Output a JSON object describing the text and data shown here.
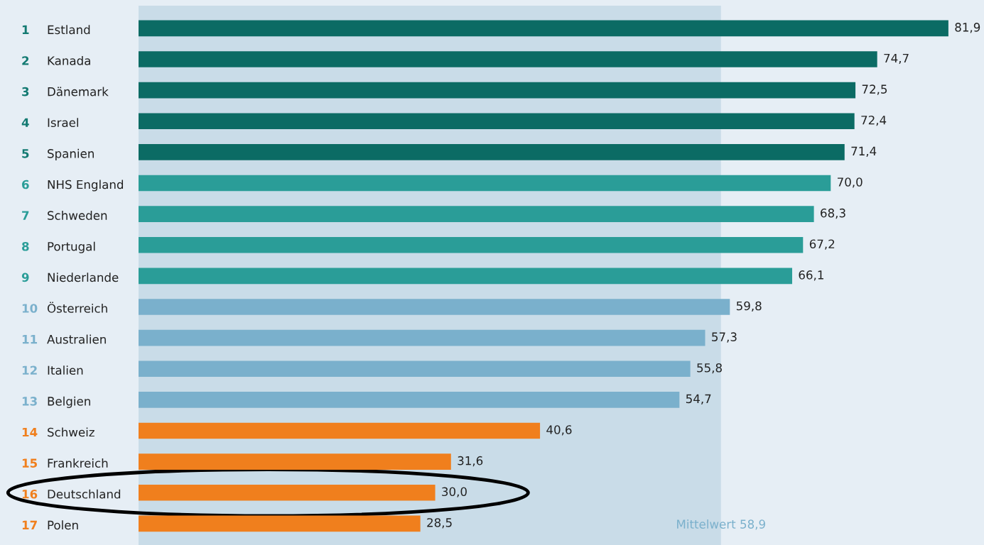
{
  "chart_data": {
    "type": "bar",
    "orientation": "horizontal",
    "categories": [
      "1 Estland",
      "2 Kanada",
      "3 Dänemark",
      "4 Israel",
      "5 Spanien",
      "6 NHS England",
      "7 Schweden",
      "8 Portugal",
      "9 Niederlande",
      "10 Österreich",
      "11 Australien",
      "12 Italien",
      "13 Belgien",
      "14 Schweiz",
      "15 Frankreich",
      "16 Deutschland",
      "17 Polen"
    ],
    "values": [
      81.9,
      74.7,
      72.5,
      72.4,
      71.4,
      70.0,
      68.3,
      67.2,
      66.1,
      59.8,
      57.3,
      55.8,
      54.7,
      40.6,
      31.6,
      30.0,
      28.5
    ],
    "value_labels": [
      "81,9",
      "74,7",
      "72,5",
      "72,4",
      "71,4",
      "70,0",
      "68,3",
      "67,2",
      "66,1",
      "59,8",
      "57,3",
      "55,8",
      "54,7",
      "40,6",
      "31,6",
      "30,0",
      "28,5"
    ],
    "colors": [
      "#0b6b64",
      "#0b6b64",
      "#0b6b64",
      "#0b6b64",
      "#0b6b64",
      "#2a9d98",
      "#2a9d98",
      "#2a9d98",
      "#2a9d98",
      "#7ab0cc",
      "#7ab0cc",
      "#7ab0cc",
      "#7ab0cc",
      "#f07f1d",
      "#f07f1d",
      "#f07f1d",
      "#f07f1d"
    ],
    "xlim": [
      0,
      85.5
    ],
    "bands": [
      {
        "axis": "x",
        "from": 0,
        "to": 58.9,
        "label": "Mittelwert 58,9",
        "color": "#c9dce8"
      }
    ],
    "legend": false
  }
}
